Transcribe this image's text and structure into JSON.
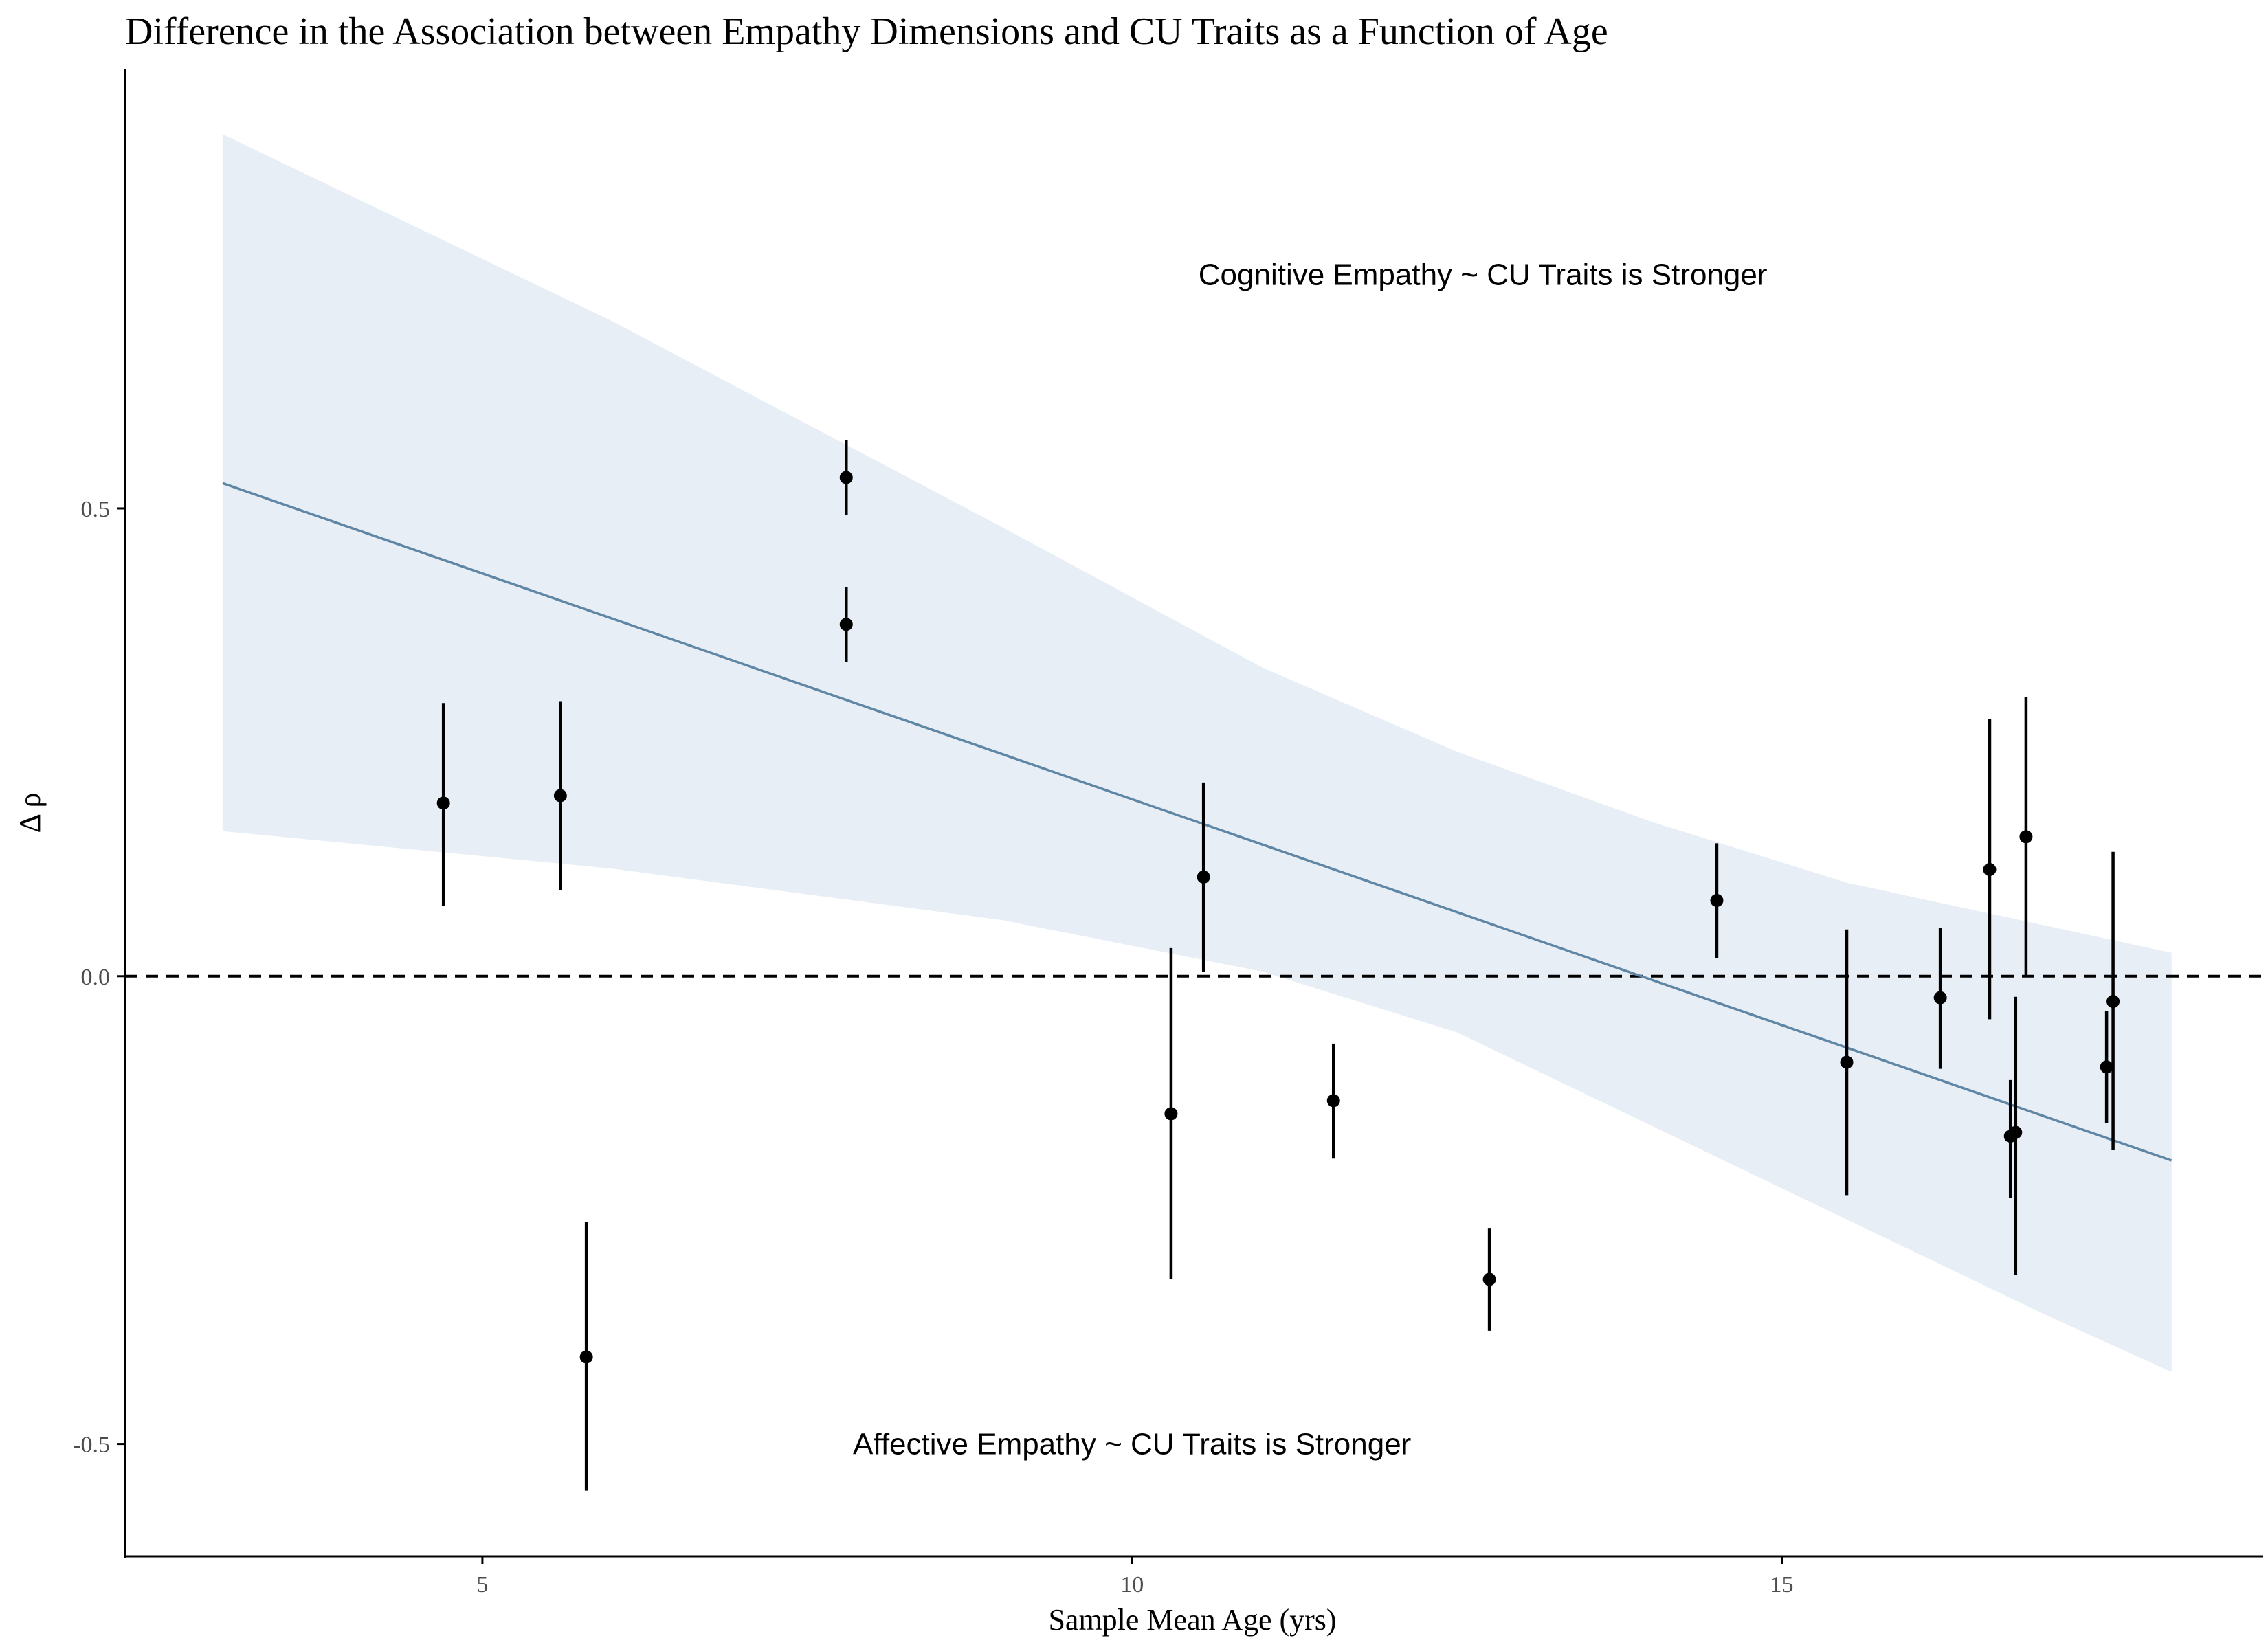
{
  "chart_data": {
    "type": "scatter",
    "title": "Difference in the Association between Empathy Dimensions and CU Traits as a Function of Age",
    "xlabel": "Sample Mean Age (yrs)",
    "ylabel": "Δ ρ",
    "xlim": [
      2.25,
      18.7
    ],
    "ylim": [
      -0.62,
      0.97
    ],
    "x_ticks": [
      5,
      10,
      15
    ],
    "x_tick_labels": [
      "5",
      "10",
      "15"
    ],
    "y_ticks": [
      -0.5,
      0.0,
      0.5
    ],
    "y_tick_labels": [
      "-0.5",
      "0.0",
      "0.5"
    ],
    "grid": false,
    "reference_line_y": 0.0,
    "annotations": [
      {
        "text": "Cognitive Empathy ~ CU Traits is Stronger",
        "x": 12.7,
        "y": 0.75
      },
      {
        "text": "Affective Empathy ~ CU Traits is Stronger",
        "x": 10.0,
        "y": -0.5
      }
    ],
    "points": [
      {
        "x": 4.7,
        "y": 0.185,
        "lo": 0.075,
        "hi": 0.292
      },
      {
        "x": 5.6,
        "y": 0.193,
        "lo": 0.092,
        "hi": 0.294
      },
      {
        "x": 5.8,
        "y": -0.407,
        "lo": -0.55,
        "hi": -0.263
      },
      {
        "x": 7.8,
        "y": 0.533,
        "lo": 0.493,
        "hi": 0.573
      },
      {
        "x": 7.8,
        "y": 0.376,
        "lo": 0.336,
        "hi": 0.416
      },
      {
        "x": 10.3,
        "y": -0.147,
        "lo": -0.324,
        "hi": 0.03
      },
      {
        "x": 10.55,
        "y": 0.106,
        "lo": 0.005,
        "hi": 0.207
      },
      {
        "x": 11.55,
        "y": -0.133,
        "lo": -0.195,
        "hi": -0.072
      },
      {
        "x": 12.75,
        "y": -0.324,
        "lo": -0.379,
        "hi": -0.269
      },
      {
        "x": 14.5,
        "y": 0.081,
        "lo": 0.019,
        "hi": 0.142
      },
      {
        "x": 15.5,
        "y": -0.092,
        "lo": -0.234,
        "hi": 0.05
      },
      {
        "x": 16.22,
        "y": -0.023,
        "lo": -0.099,
        "hi": 0.052
      },
      {
        "x": 16.6,
        "y": 0.114,
        "lo": -0.046,
        "hi": 0.275
      },
      {
        "x": 16.76,
        "y": -0.171,
        "lo": -0.237,
        "hi": -0.111
      },
      {
        "x": 16.8,
        "y": -0.167,
        "lo": -0.319,
        "hi": -0.022
      },
      {
        "x": 16.88,
        "y": 0.149,
        "lo": 0.0,
        "hi": 0.298
      },
      {
        "x": 17.5,
        "y": -0.097,
        "lo": -0.157,
        "hi": -0.037
      },
      {
        "x": 17.55,
        "y": -0.027,
        "lo": -0.186,
        "hi": 0.133
      }
    ],
    "regression_line": {
      "x": [
        3.0,
        18.0
      ],
      "y": [
        0.527,
        -0.197
      ],
      "color": "#5f86a5"
    },
    "confidence_band": {
      "color": "#e8eef6",
      "x": [
        3.0,
        6.0,
        9.0,
        11.0,
        12.5,
        14.0,
        15.5,
        17.0,
        18.0
      ],
      "upper": [
        0.9,
        0.7,
        0.48,
        0.33,
        0.24,
        0.165,
        0.1,
        0.055,
        0.025
      ],
      "lower": [
        0.155,
        0.115,
        0.06,
        0.005,
        -0.06,
        -0.16,
        -0.26,
        -0.36,
        -0.423
      ]
    },
    "colors": {
      "points": "#000000",
      "reference_line": "#000000",
      "axis": "#000000"
    }
  }
}
